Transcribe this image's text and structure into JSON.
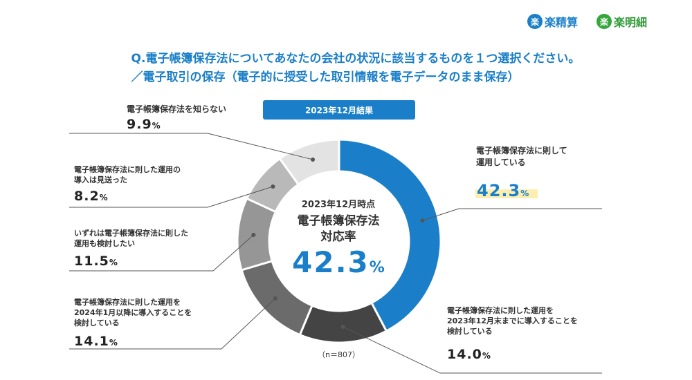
{
  "brand": {
    "logo1_mark": "楽",
    "logo1_name": "楽精算",
    "logo2_mark": "楽",
    "logo2_name": "楽明細"
  },
  "question": "Q.電子帳簿保存法についてあなたの会社の状況に該当するものを１つ選択ください。",
  "subquestion": "／電子取引の保存（電子的に授受した取引情報を電子データのまま保存）",
  "badge": "2023年12月結果",
  "center": {
    "line1": "2023年12月時点",
    "line2": "電子帳簿保存法",
    "line3": "対応率",
    "value": "42.3",
    "unit": "%"
  },
  "sample": "（n＝807）",
  "chart_data": {
    "type": "pie",
    "style": "donut",
    "unit": "%",
    "slices": [
      {
        "label_lines": [
          "電子帳簿保存法に則して",
          "運用している"
        ],
        "value": 42.3,
        "value_text": "42.3",
        "color": "#1a7fc8"
      },
      {
        "label_lines": [
          "電子帳簿保存法に則した運用を",
          "2023年12月末までに導入することを",
          "検討している"
        ],
        "value": 14.0,
        "value_text": "14.0",
        "color": "#444444"
      },
      {
        "label_lines": [
          "電子帳簿保存法に則した運用を",
          "2024年1月以降に導入することを",
          "検討している"
        ],
        "value": 14.1,
        "value_text": "14.1",
        "color": "#6b6b6b"
      },
      {
        "label_lines": [
          "いずれは電子帳簿保存法に則した",
          "運用も検討したい"
        ],
        "value": 11.5,
        "value_text": "11.5",
        "color": "#969696"
      },
      {
        "label_lines": [
          "電子帳簿保存法に則した運用の",
          "導入は見送った"
        ],
        "value": 8.2,
        "value_text": "8.2",
        "color": "#b9b9b9"
      },
      {
        "label_lines": [
          "電子帳簿保存法を知らない"
        ],
        "value": 9.9,
        "value_text": "9.9",
        "color": "#e3e3e3"
      }
    ],
    "start": "top",
    "direction": "clockwise",
    "pct_unit": "%"
  }
}
